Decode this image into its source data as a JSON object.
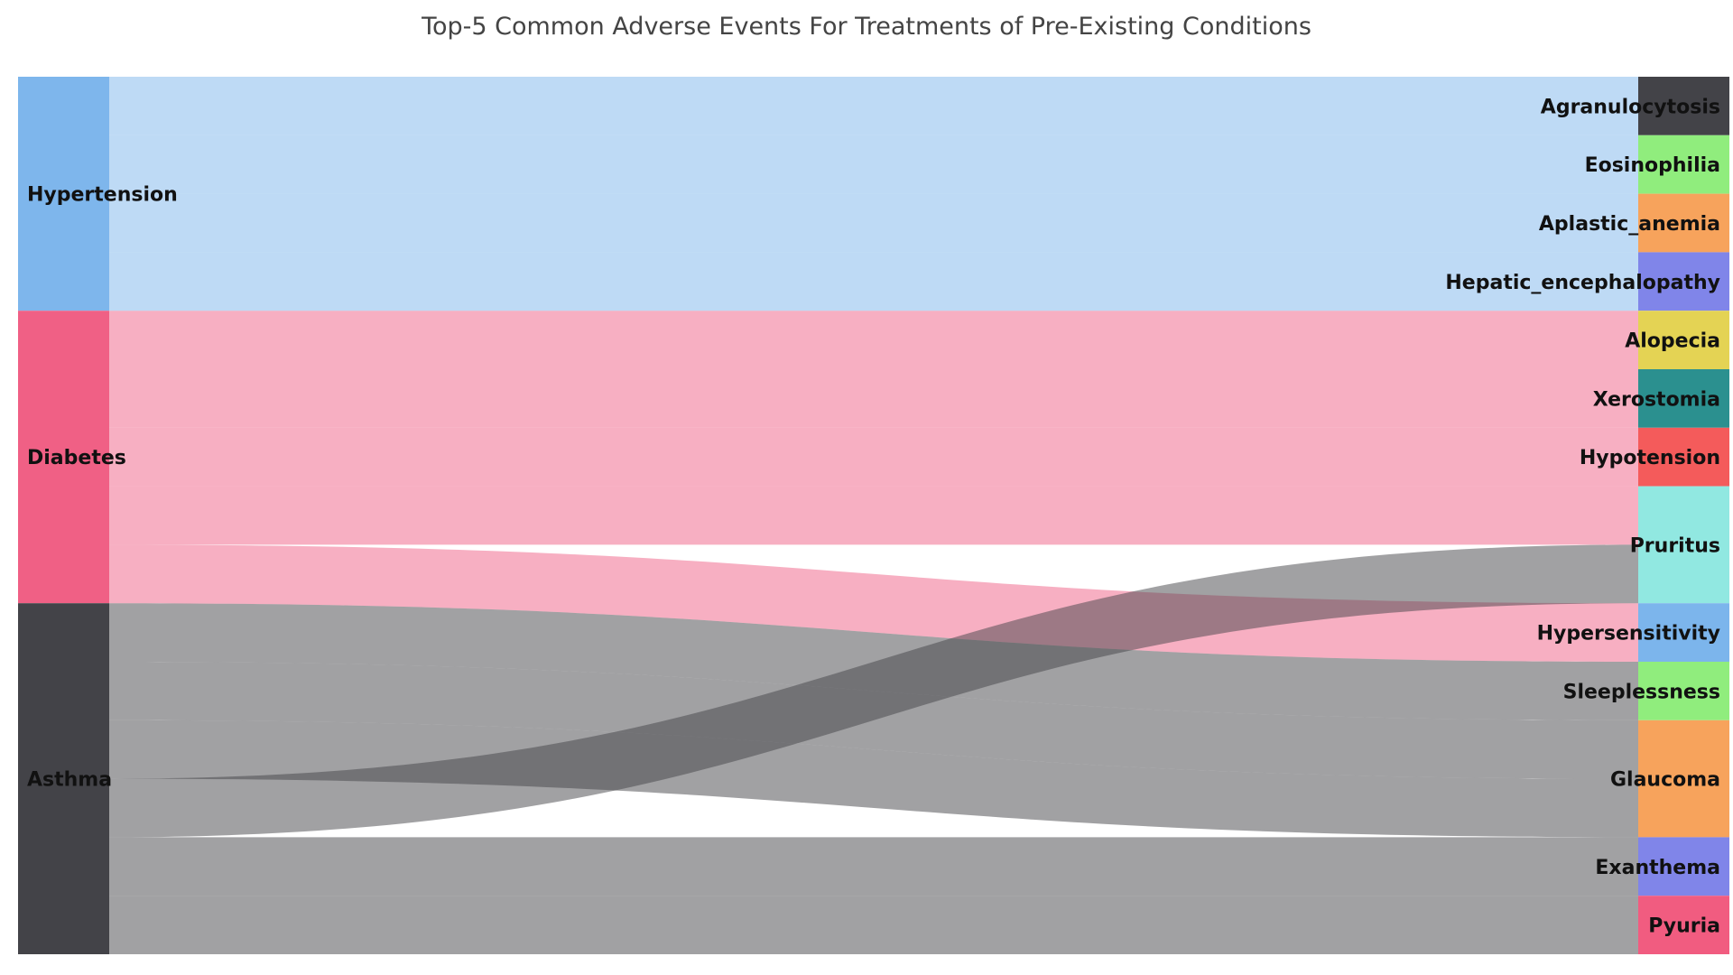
{
  "chart_data": {
    "type": "sankey",
    "title": "Top-5 Common Adverse Events For Treatments of Pre-Existing Conditions",
    "sources": [
      {
        "name": "Hypertension",
        "color": "#7eb6ec"
      },
      {
        "name": "Diabetes",
        "color": "#f06085"
      },
      {
        "name": "Asthma",
        "color": "#434348"
      }
    ],
    "targets": [
      {
        "name": "Agranulocytosis",
        "color": "#434348"
      },
      {
        "name": "Eosinophilia",
        "color": "#90ed7d"
      },
      {
        "name": "Aplastic_anemia",
        "color": "#f7a35c"
      },
      {
        "name": "Hepatic_encephalopathy",
        "color": "#8085e9"
      },
      {
        "name": "Alopecia",
        "color": "#e4d354"
      },
      {
        "name": "Xerostomia",
        "color": "#2b908f"
      },
      {
        "name": "Hypotension",
        "color": "#f45b5b"
      },
      {
        "name": "Pruritus",
        "color": "#91e8e1"
      },
      {
        "name": "Hypersensitivity",
        "color": "#7cb5ec"
      },
      {
        "name": "Sleeplessness",
        "color": "#90ed7d"
      },
      {
        "name": "Glaucoma",
        "color": "#f7a35c"
      },
      {
        "name": "Exanthema",
        "color": "#8085e9"
      },
      {
        "name": "Pyuria",
        "color": "#f15c80"
      }
    ],
    "links": [
      {
        "source": "Hypertension",
        "target": "Agranulocytosis",
        "value": 1
      },
      {
        "source": "Hypertension",
        "target": "Eosinophilia",
        "value": 1
      },
      {
        "source": "Hypertension",
        "target": "Aplastic_anemia",
        "value": 1
      },
      {
        "source": "Hypertension",
        "target": "Hepatic_encephalopathy",
        "value": 1
      },
      {
        "source": "Diabetes",
        "target": "Alopecia",
        "value": 1
      },
      {
        "source": "Diabetes",
        "target": "Xerostomia",
        "value": 1
      },
      {
        "source": "Diabetes",
        "target": "Hypotension",
        "value": 1
      },
      {
        "source": "Diabetes",
        "target": "Pruritus",
        "value": 1
      },
      {
        "source": "Diabetes",
        "target": "Hypersensitivity",
        "value": 1
      },
      {
        "source": "Asthma",
        "target": "Sleeplessness",
        "value": 1
      },
      {
        "source": "Asthma",
        "target": "Glaucoma",
        "value": 1
      },
      {
        "source": "Asthma",
        "target": "Glaucoma",
        "value": 1
      },
      {
        "source": "Asthma",
        "target": "Pruritus",
        "value": 1
      },
      {
        "source": "Asthma",
        "target": "Exanthema",
        "value": 1
      },
      {
        "source": "Asthma",
        "target": "Pyuria",
        "value": 1
      }
    ]
  }
}
